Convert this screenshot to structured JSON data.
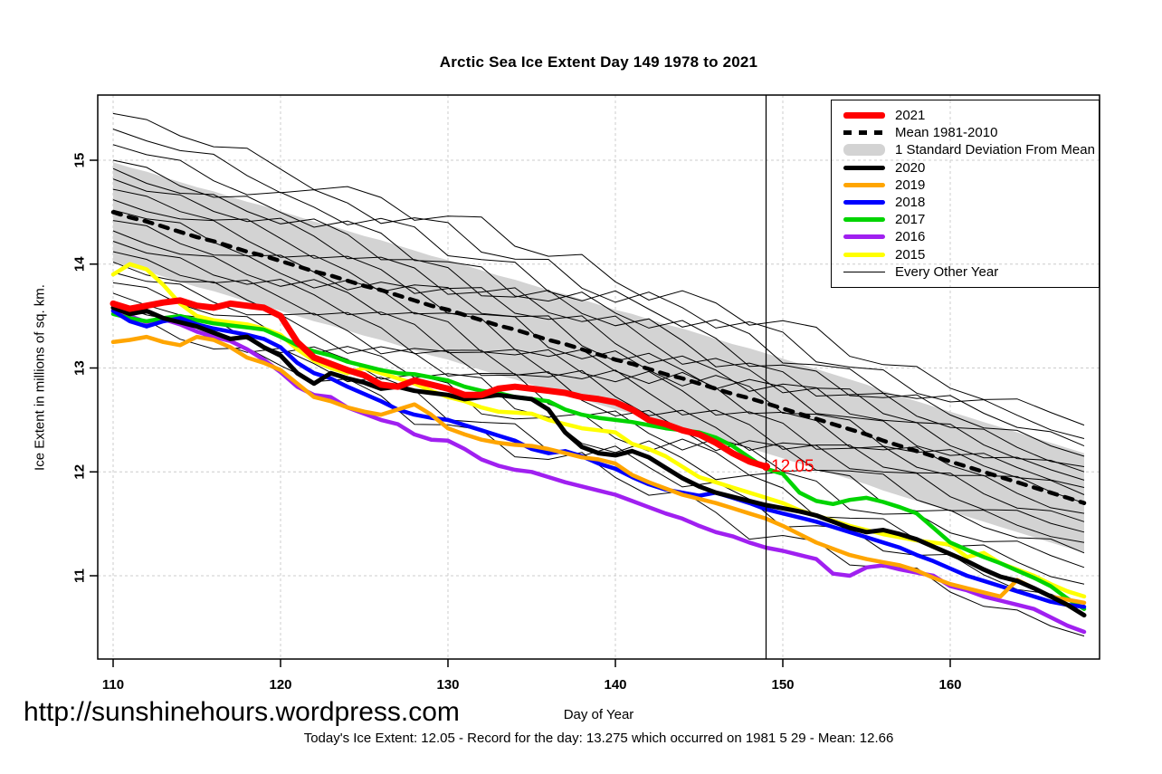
{
  "title": "Arctic Sea Ice Extent Day 149 1978 to 2021",
  "watermark": "http://sunshinehours.wordpress.com",
  "caption": "Today's Ice Extent: 12.05  - Record for the day: 13.275 which occurred on 1981 5 29  - Mean: 12.66",
  "annotation": {
    "text": "12.05",
    "day": 149,
    "value": 12.05,
    "color": "#FF0000"
  },
  "colors": {
    "red_2021": "#FF0000",
    "black_2020": "#000000",
    "orange_2019": "#FFA500",
    "blue_2018": "#0000FF",
    "green_2017": "#00D400",
    "purple_2016": "#A020F0",
    "yellow_2015": "#FFFF00",
    "band_gray": "#D3D3D3",
    "grid_gray": "#CCCCCC",
    "axis_black": "#000000"
  },
  "legend": {
    "items": [
      {
        "label": "2021",
        "kind": "line",
        "color": "#FF0000",
        "thickness": 7
      },
      {
        "label": "Mean 1981-2010",
        "kind": "dash",
        "color": "#000000",
        "thickness": 5
      },
      {
        "label": "1 Standard Deviation From Mean",
        "kind": "band",
        "color": "#D3D3D3",
        "thickness": 13
      },
      {
        "label": "2020",
        "kind": "line",
        "color": "#000000",
        "thickness": 5
      },
      {
        "label": "2019",
        "kind": "line",
        "color": "#FFA500",
        "thickness": 5
      },
      {
        "label": "2018",
        "kind": "line",
        "color": "#0000FF",
        "thickness": 5
      },
      {
        "label": "2017",
        "kind": "line",
        "color": "#00D400",
        "thickness": 5
      },
      {
        "label": "2016",
        "kind": "line",
        "color": "#A020F0",
        "thickness": 5
      },
      {
        "label": "2015",
        "kind": "line",
        "color": "#FFFF00",
        "thickness": 5
      },
      {
        "label": "Every Other Year",
        "kind": "thin",
        "color": "#000000",
        "thickness": 1
      }
    ]
  },
  "chart_data": {
    "type": "line",
    "title": "Arctic Sea Ice Extent Day 149 1978 to 2021",
    "xlabel": "Day of Year",
    "ylabel": "Ice Extent in millions of sq. km.",
    "x_start": 110,
    "x_end": 168,
    "xlim": [
      109,
      169
    ],
    "ylim": [
      10.2,
      15.63
    ],
    "x_ticks": [
      110,
      120,
      130,
      140,
      150,
      160
    ],
    "y_ticks": [
      11,
      12,
      13,
      14,
      15
    ],
    "grid": true,
    "legend_position": "top-right",
    "vline_day": 149,
    "band": {
      "name": "1 Standard Deviation From Mean",
      "color": "#D3D3D3",
      "half_width": 0.48,
      "based_on": "Mean 1981-2010"
    },
    "series": [
      {
        "name": "2021",
        "color": "#FF0000",
        "width": 7,
        "values": [
          13.62,
          13.57,
          13.6,
          13.63,
          13.65,
          13.6,
          13.58,
          13.62,
          13.6,
          13.58,
          13.5,
          13.25,
          13.1,
          13.04,
          12.98,
          12.93,
          12.84,
          12.82,
          12.88,
          12.84,
          12.8,
          12.74,
          12.74,
          12.8,
          12.82,
          12.8,
          12.78,
          12.76,
          12.72,
          12.7,
          12.67,
          12.6,
          12.5,
          12.46,
          12.4,
          12.36,
          12.28,
          12.18,
          12.1,
          12.05
        ]
      },
      {
        "name": "Mean 1981-2010",
        "color": "#000000",
        "width": 4.5,
        "dashed": true,
        "values": [
          14.5,
          14.45,
          14.41,
          14.36,
          14.31,
          14.26,
          14.22,
          14.17,
          14.12,
          14.08,
          14.03,
          13.98,
          13.93,
          13.89,
          13.84,
          13.79,
          13.75,
          13.7,
          13.65,
          13.6,
          13.56,
          13.51,
          13.46,
          13.41,
          13.37,
          13.32,
          13.27,
          13.23,
          13.18,
          13.13,
          13.08,
          13.04,
          12.99,
          12.94,
          12.9,
          12.85,
          12.8,
          12.75,
          12.71,
          12.66,
          12.61,
          12.56,
          12.51,
          12.46,
          12.41,
          12.36,
          12.3,
          12.25,
          12.2,
          12.15,
          12.1,
          12.05,
          12.0,
          11.95,
          11.9,
          11.85,
          11.8,
          11.75,
          11.7
        ]
      },
      {
        "name": "2020",
        "color": "#000000",
        "width": 5,
        "values": [
          13.58,
          13.52,
          13.55,
          13.48,
          13.44,
          13.4,
          13.34,
          13.28,
          13.3,
          13.2,
          13.12,
          12.95,
          12.85,
          12.95,
          12.9,
          12.86,
          12.8,
          12.82,
          12.78,
          12.76,
          12.74,
          12.7,
          12.72,
          12.74,
          12.72,
          12.7,
          12.6,
          12.38,
          12.24,
          12.18,
          12.16,
          12.2,
          12.14,
          12.04,
          11.94,
          11.86,
          11.8,
          11.76,
          11.72,
          11.68,
          11.65,
          11.62,
          11.58,
          11.52,
          11.46,
          11.42,
          11.44,
          11.4,
          11.35,
          11.28,
          11.21,
          11.14,
          11.06,
          10.99,
          10.95,
          10.88,
          10.8,
          10.72,
          10.62
        ]
      },
      {
        "name": "2019",
        "color": "#FFA500",
        "width": 4.5,
        "values": [
          13.25,
          13.27,
          13.3,
          13.25,
          13.22,
          13.3,
          13.27,
          13.2,
          13.1,
          13.05,
          12.98,
          12.85,
          12.72,
          12.68,
          12.62,
          12.58,
          12.55,
          12.6,
          12.65,
          12.55,
          12.42,
          12.36,
          12.31,
          12.28,
          12.26,
          12.25,
          12.22,
          12.18,
          12.14,
          12.12,
          12.08,
          11.97,
          11.9,
          11.84,
          11.78,
          11.74,
          11.7,
          11.65,
          11.6,
          11.55,
          11.48,
          11.4,
          11.32,
          11.26,
          11.2,
          11.16,
          11.13,
          11.1,
          11.05,
          10.98,
          10.92,
          10.88,
          10.84,
          10.8,
          10.96,
          10.88,
          10.8,
          10.77,
          10.74
        ]
      },
      {
        "name": "2018",
        "color": "#0000FF",
        "width": 4.5,
        "values": [
          13.55,
          13.45,
          13.4,
          13.45,
          13.48,
          13.42,
          13.38,
          13.35,
          13.32,
          13.28,
          13.2,
          13.05,
          12.95,
          12.9,
          12.82,
          12.75,
          12.68,
          12.6,
          12.55,
          12.52,
          12.5,
          12.45,
          12.4,
          12.35,
          12.3,
          12.22,
          12.18,
          12.2,
          12.15,
          12.08,
          12.03,
          11.95,
          11.88,
          11.83,
          11.8,
          11.77,
          11.8,
          11.75,
          11.7,
          11.64,
          11.6,
          11.56,
          11.52,
          11.47,
          11.42,
          11.37,
          11.32,
          11.27,
          11.2,
          11.14,
          11.07,
          11.0,
          10.95,
          10.9,
          10.85,
          10.8,
          10.75,
          10.72,
          10.7
        ]
      },
      {
        "name": "2017",
        "color": "#00D400",
        "width": 4.5,
        "values": [
          13.52,
          13.48,
          13.45,
          13.48,
          13.5,
          13.46,
          13.43,
          13.41,
          13.39,
          13.37,
          13.3,
          13.22,
          13.16,
          13.12,
          13.06,
          13.02,
          12.98,
          12.95,
          12.94,
          12.91,
          12.88,
          12.82,
          12.78,
          12.76,
          12.72,
          12.7,
          12.68,
          12.6,
          12.55,
          12.52,
          12.5,
          12.48,
          12.45,
          12.42,
          12.4,
          12.38,
          12.33,
          12.25,
          12.14,
          12.03,
          11.98,
          11.8,
          11.72,
          11.69,
          11.73,
          11.75,
          11.71,
          11.66,
          11.6,
          11.46,
          11.32,
          11.25,
          11.18,
          11.12,
          11.05,
          10.98,
          10.9,
          10.78,
          10.68
        ]
      },
      {
        "name": "2016",
        "color": "#A020F0",
        "width": 4.5,
        "values": [
          13.55,
          13.5,
          13.44,
          13.47,
          13.42,
          13.35,
          13.3,
          13.26,
          13.18,
          13.08,
          12.96,
          12.82,
          12.74,
          12.72,
          12.62,
          12.56,
          12.5,
          12.46,
          12.36,
          12.31,
          12.3,
          12.22,
          12.12,
          12.06,
          12.02,
          12.0,
          11.95,
          11.9,
          11.86,
          11.82,
          11.78,
          11.72,
          11.66,
          11.6,
          11.55,
          11.48,
          11.42,
          11.38,
          11.32,
          11.27,
          11.24,
          11.2,
          11.16,
          11.02,
          11.0,
          11.08,
          11.1,
          11.06,
          11.03,
          11.0,
          10.9,
          10.86,
          10.8,
          10.76,
          10.72,
          10.68,
          10.6,
          10.52,
          10.46
        ]
      },
      {
        "name": "2015",
        "color": "#FFFF00",
        "width": 4.5,
        "values": [
          13.9,
          14.0,
          13.95,
          13.8,
          13.62,
          13.5,
          13.46,
          13.44,
          13.42,
          13.38,
          13.32,
          13.18,
          13.07,
          13.0,
          12.95,
          13.0,
          12.95,
          12.9,
          12.85,
          12.78,
          12.72,
          12.68,
          12.62,
          12.58,
          12.57,
          12.56,
          12.5,
          12.46,
          12.42,
          12.4,
          12.38,
          12.27,
          12.22,
          12.15,
          12.05,
          11.95,
          11.9,
          11.85,
          11.8,
          11.75,
          11.7,
          11.63,
          11.58,
          11.53,
          11.48,
          11.44,
          11.4,
          11.37,
          11.34,
          11.32,
          11.3,
          11.18,
          11.22,
          11.12,
          11.06,
          11.0,
          10.92,
          10.85,
          10.8
        ]
      }
    ],
    "background_series": {
      "name": "Every Other Year",
      "color": "#000000",
      "width": 1,
      "lines": [
        {
          "start": 15.45,
          "end": 12.45
        },
        {
          "start": 15.3,
          "end": 12.32
        },
        {
          "start": 15.15,
          "end": 12.25
        },
        {
          "start": 15.0,
          "end": 12.15
        },
        {
          "start": 14.92,
          "end": 12.05
        },
        {
          "start": 14.82,
          "end": 12.0
        },
        {
          "start": 14.72,
          "end": 11.92
        },
        {
          "start": 14.62,
          "end": 11.85
        },
        {
          "start": 14.52,
          "end": 11.78
        },
        {
          "start": 14.42,
          "end": 11.7
        },
        {
          "start": 14.32,
          "end": 11.6
        },
        {
          "start": 14.22,
          "end": 11.52
        },
        {
          "start": 14.12,
          "end": 11.42
        },
        {
          "start": 14.02,
          "end": 11.32
        },
        {
          "start": 13.92,
          "end": 11.22
        },
        {
          "start": 13.82,
          "end": 11.08
        },
        {
          "start": 13.72,
          "end": 10.92
        },
        {
          "start": 13.62,
          "end": 10.7
        },
        {
          "start": 13.55,
          "end": 10.42
        }
      ]
    }
  }
}
